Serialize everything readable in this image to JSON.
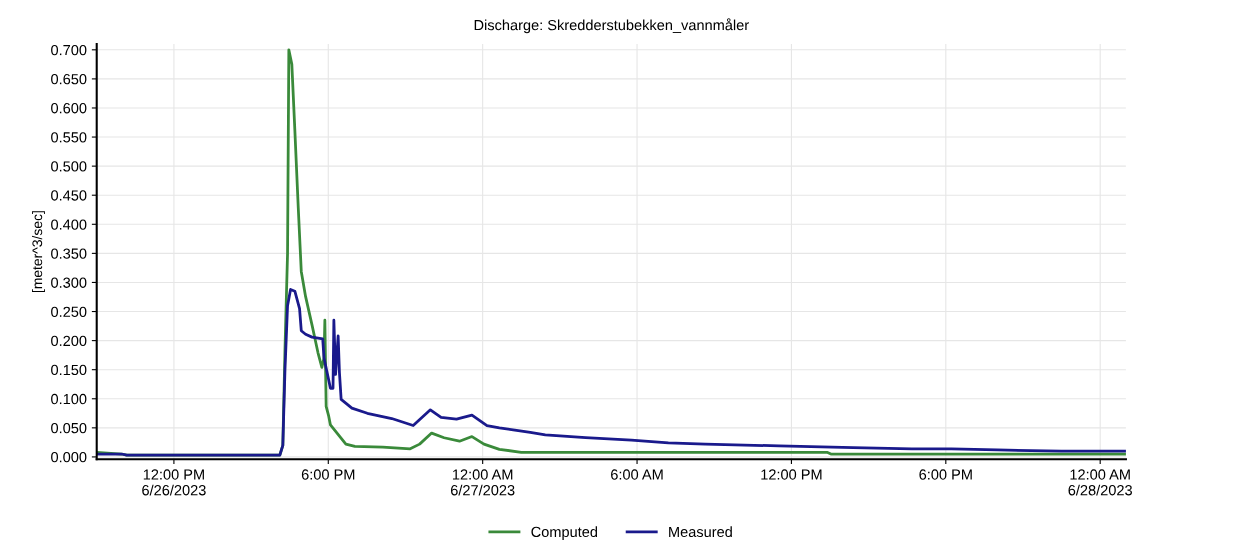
{
  "chart_data": {
    "type": "line",
    "title": "Discharge: Skredderstubekken_vannmåler",
    "ylabel": "[meter^3/sec]",
    "xlim": [
      "2023-06-26T09:00",
      "2023-06-28T01:00"
    ],
    "ylim": [
      -0.004,
      0.71
    ],
    "xticks": [
      {
        "value": "2023-06-26T12:00",
        "label": "12:00 PM\n6/26/2023"
      },
      {
        "value": "2023-06-26T18:00",
        "label": "6:00 PM"
      },
      {
        "value": "2023-06-27T00:00",
        "label": "12:00 AM\n6/27/2023"
      },
      {
        "value": "2023-06-27T06:00",
        "label": "6:00 AM"
      },
      {
        "value": "2023-06-27T12:00",
        "label": "12:00 PM"
      },
      {
        "value": "2023-06-27T18:00",
        "label": "6:00 PM"
      },
      {
        "value": "2023-06-28T00:00",
        "label": "12:00 AM\n6/28/2023"
      }
    ],
    "yticks": [
      {
        "value": 0,
        "label": "0.000"
      },
      {
        "value": 0.05,
        "label": "0.050"
      },
      {
        "value": 0.1,
        "label": "0.100"
      },
      {
        "value": 0.15,
        "label": "0.150"
      },
      {
        "value": 0.2,
        "label": "0.200"
      },
      {
        "value": 0.25,
        "label": "0.250"
      },
      {
        "value": 0.3,
        "label": "0.300"
      },
      {
        "value": 0.35,
        "label": "0.350"
      },
      {
        "value": 0.4,
        "label": "0.400"
      },
      {
        "value": 0.45,
        "label": "0.450"
      },
      {
        "value": 0.5,
        "label": "0.500"
      },
      {
        "value": 0.55,
        "label": "0.550"
      },
      {
        "value": 0.6,
        "label": "0.600"
      },
      {
        "value": 0.65,
        "label": "0.650"
      },
      {
        "value": 0.7,
        "label": "0.700"
      }
    ],
    "grid": true,
    "legend": "bottom",
    "marker": "none",
    "line_style": "solid",
    "series": [
      {
        "name": "Computed",
        "color": "#3a8a3a",
        "x": [
          "2023-06-26T09:00",
          "2023-06-26T09:58",
          "2023-06-26T10:10",
          "2023-06-26T16:07",
          "2023-06-26T16:14",
          "2023-06-26T16:19",
          "2023-06-26T16:25",
          "2023-06-26T16:28",
          "2023-06-26T16:35",
          "2023-06-26T16:42",
          "2023-06-26T16:50",
          "2023-06-26T16:57",
          "2023-06-26T17:07",
          "2023-06-26T17:22",
          "2023-06-26T17:36",
          "2023-06-26T17:45",
          "2023-06-26T17:50",
          "2023-06-26T17:52",
          "2023-06-26T17:55",
          "2023-06-26T18:01",
          "2023-06-26T18:05",
          "2023-06-26T18:41",
          "2023-06-26T19:02",
          "2023-06-26T20:07",
          "2023-06-26T21:11",
          "2023-06-26T21:33",
          "2023-06-26T22:01",
          "2023-06-26T22:30",
          "2023-06-26T23:06",
          "2023-06-26T23:35",
          "2023-06-27T00:03",
          "2023-06-27T00:39",
          "2023-06-27T01:30",
          "2023-06-27T13:23",
          "2023-06-27T13:32",
          "2023-06-28T01:00"
        ],
        "values": [
          0.008,
          0.005,
          0.003,
          0.003,
          0.02,
          0.185,
          0.35,
          0.7,
          0.675,
          0.562,
          0.428,
          0.319,
          0.276,
          0.227,
          0.179,
          0.154,
          0.17,
          0.235,
          0.087,
          0.07,
          0.055,
          0.022,
          0.018,
          0.017,
          0.014,
          0.022,
          0.041,
          0.033,
          0.027,
          0.035,
          0.022,
          0.013,
          0.008,
          0.008,
          0.005,
          0.005
        ]
      },
      {
        "name": "Measured",
        "color": "#1a1a8c",
        "x": [
          "2023-06-26T09:00",
          "2023-06-26T09:58",
          "2023-06-26T10:10",
          "2023-06-26T16:07",
          "2023-06-26T16:14",
          "2023-06-26T16:19",
          "2023-06-26T16:25",
          "2023-06-26T16:32",
          "2023-06-26T16:42",
          "2023-06-26T16:53",
          "2023-06-26T16:57",
          "2023-06-26T17:07",
          "2023-06-26T17:22",
          "2023-06-26T17:47",
          "2023-06-26T17:50",
          "2023-06-26T18:01",
          "2023-06-26T18:05",
          "2023-06-26T18:11",
          "2023-06-26T18:13",
          "2023-06-26T18:17",
          "2023-06-26T18:23",
          "2023-06-26T18:26",
          "2023-06-26T18:30",
          "2023-06-26T18:55",
          "2023-06-26T19:31",
          "2023-06-26T20:28",
          "2023-06-26T21:18",
          "2023-06-26T21:58",
          "2023-06-26T22:23",
          "2023-06-26T22:59",
          "2023-06-26T23:35",
          "2023-06-27T00:10",
          "2023-06-27T00:39",
          "2023-06-27T01:15",
          "2023-06-27T01:51",
          "2023-06-27T02:26",
          "2023-06-27T04:00",
          "2023-06-27T05:47",
          "2023-06-27T07:13",
          "2023-06-27T08:39",
          "2023-06-27T11:31",
          "2023-06-27T14:24",
          "2023-06-27T16:41",
          "2023-06-27T18:13",
          "2023-06-27T20:00",
          "2023-06-27T22:30",
          "2023-06-28T01:00"
        ],
        "values": [
          0.005,
          0.005,
          0.003,
          0.003,
          0.02,
          0.15,
          0.26,
          0.288,
          0.285,
          0.255,
          0.217,
          0.211,
          0.206,
          0.203,
          0.17,
          0.132,
          0.118,
          0.118,
          0.235,
          0.142,
          0.208,
          0.145,
          0.099,
          0.084,
          0.075,
          0.066,
          0.054,
          0.081,
          0.068,
          0.065,
          0.072,
          0.054,
          0.05,
          0.046,
          0.042,
          0.038,
          0.033,
          0.029,
          0.024,
          0.022,
          0.019,
          0.016,
          0.014,
          0.014,
          0.012,
          0.01,
          0.01
        ]
      }
    ]
  }
}
